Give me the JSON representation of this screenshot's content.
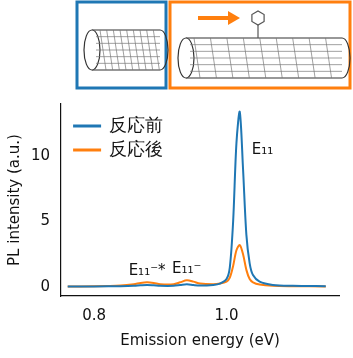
{
  "chart_data": {
    "type": "line",
    "x_label": "Emission energy (eV)",
    "y_label": "PL intensity (a.u.)",
    "x": [
      0.76,
      0.8,
      0.84,
      0.86,
      0.87,
      0.88,
      0.89,
      0.9,
      0.92,
      0.93,
      0.94,
      0.95,
      0.96,
      0.98,
      0.99,
      1.0,
      1.005,
      1.01,
      1.015,
      1.02,
      1.025,
      1.03,
      1.035,
      1.04,
      1.05,
      1.07,
      1.1,
      1.15
    ],
    "series": [
      {
        "name": "反応前",
        "color": "#1f77b4",
        "values": [
          0.02,
          0.03,
          0.05,
          0.08,
          0.12,
          0.15,
          0.12,
          0.08,
          0.08,
          0.14,
          0.2,
          0.14,
          0.1,
          0.15,
          0.25,
          0.6,
          1.5,
          5,
          11,
          13.4,
          9,
          4,
          1.8,
          0.9,
          0.4,
          0.15,
          0.08,
          0.05
        ]
      },
      {
        "name": "反応後",
        "color": "#ff7f0e",
        "values": [
          0.02,
          0.04,
          0.1,
          0.2,
          0.3,
          0.35,
          0.3,
          0.2,
          0.2,
          0.35,
          0.5,
          0.4,
          0.25,
          0.2,
          0.25,
          0.4,
          0.7,
          1.6,
          2.8,
          3.2,
          2.5,
          1.3,
          0.6,
          0.35,
          0.18,
          0.08,
          0.05,
          0.03
        ]
      }
    ],
    "annotations": [
      {
        "text": "E₁₁⁻*",
        "x": 0.88
      },
      {
        "text": "E₁₁⁻",
        "x": 0.94
      },
      {
        "text": "E₁₁",
        "x": 1.02
      }
    ],
    "xlim": [
      0.75,
      1.17
    ],
    "xticks": [
      0.8,
      {
        "value": 1,
        "label": "1.0"
      }
    ],
    "ylim": [
      -0.7,
      14
    ],
    "yticks": [
      0,
      5,
      10
    ],
    "grid": false,
    "legend": "upper left"
  }
}
